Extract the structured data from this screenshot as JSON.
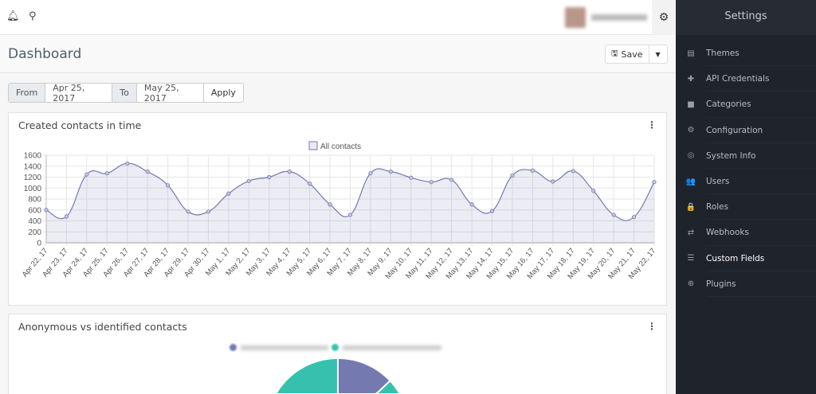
{
  "topbar": {
    "bell_icon": "bell-icon",
    "search_icon": "search-icon",
    "gear_icon": "gear-icon"
  },
  "page": {
    "title": "Dashboard",
    "save_label": "Save"
  },
  "filter": {
    "from_label": "From",
    "from_value": "Apr 25, 2017",
    "to_label": "To",
    "to_value": "May 25, 2017",
    "apply_label": "Apply"
  },
  "sidebar": {
    "title": "Settings",
    "items": [
      {
        "label": "Themes",
        "icon": "▤"
      },
      {
        "label": "API Credentials",
        "icon": "✚"
      },
      {
        "label": "Categories",
        "icon": "■"
      },
      {
        "label": "Configuration",
        "icon": "⚙"
      },
      {
        "label": "System Info",
        "icon": "◎"
      },
      {
        "label": "Users",
        "icon": "👥"
      },
      {
        "label": "Roles",
        "icon": "🔒"
      },
      {
        "label": "Webhooks",
        "icon": "⇄"
      },
      {
        "label": "Custom Fields",
        "icon": "☰",
        "active": true
      },
      {
        "label": "Plugins",
        "icon": "⊕"
      }
    ]
  },
  "cards": {
    "contacts_title": "Created contacts in time",
    "anon_title": "Anonymous vs identified contacts"
  },
  "chart_data": [
    {
      "type": "area",
      "title": "Created contacts in time",
      "legend": [
        "All contacts"
      ],
      "legend_position": "top-center",
      "ylim": [
        0,
        1600
      ],
      "yticks": [
        0,
        200,
        400,
        600,
        800,
        1000,
        1200,
        1400,
        1600
      ],
      "grid": true,
      "color": "#7479b0",
      "categories": [
        "Apr 22, 17",
        "Apr 23, 17",
        "Apr 24, 17",
        "Apr 25, 17",
        "Apr 26, 17",
        "Apr 27, 17",
        "Apr 28, 17",
        "Apr 29, 17",
        "Apr 30, 17",
        "May 1, 17",
        "May 2, 17",
        "May 3, 17",
        "May 4, 17",
        "May 5, 17",
        "May 6, 17",
        "May 7, 17",
        "May 8, 17",
        "May 9, 17",
        "May 10, 17",
        "May 11, 17",
        "May 12, 17",
        "May 13, 17",
        "May 14, 17",
        "May 15, 17",
        "May 16, 17",
        "May 17, 17",
        "May 18, 17",
        "May 19, 17",
        "May 20, 17",
        "May 21, 17",
        "May 22, 17"
      ],
      "values": [
        600,
        480,
        1250,
        1270,
        1450,
        1300,
        1050,
        570,
        570,
        900,
        1130,
        1200,
        1300,
        1080,
        700,
        510,
        1270,
        1300,
        1190,
        1110,
        1150,
        700,
        580,
        1230,
        1320,
        1120,
        1310,
        950,
        510,
        470,
        1110
      ]
    },
    {
      "type": "pie",
      "title": "Anonymous vs identified contacts",
      "series": [
        {
          "name": "Identified",
          "value": 13,
          "color": "#7479b0"
        },
        {
          "name": "Anonymous",
          "value": 87,
          "color": "#35c1ad"
        }
      ]
    }
  ]
}
